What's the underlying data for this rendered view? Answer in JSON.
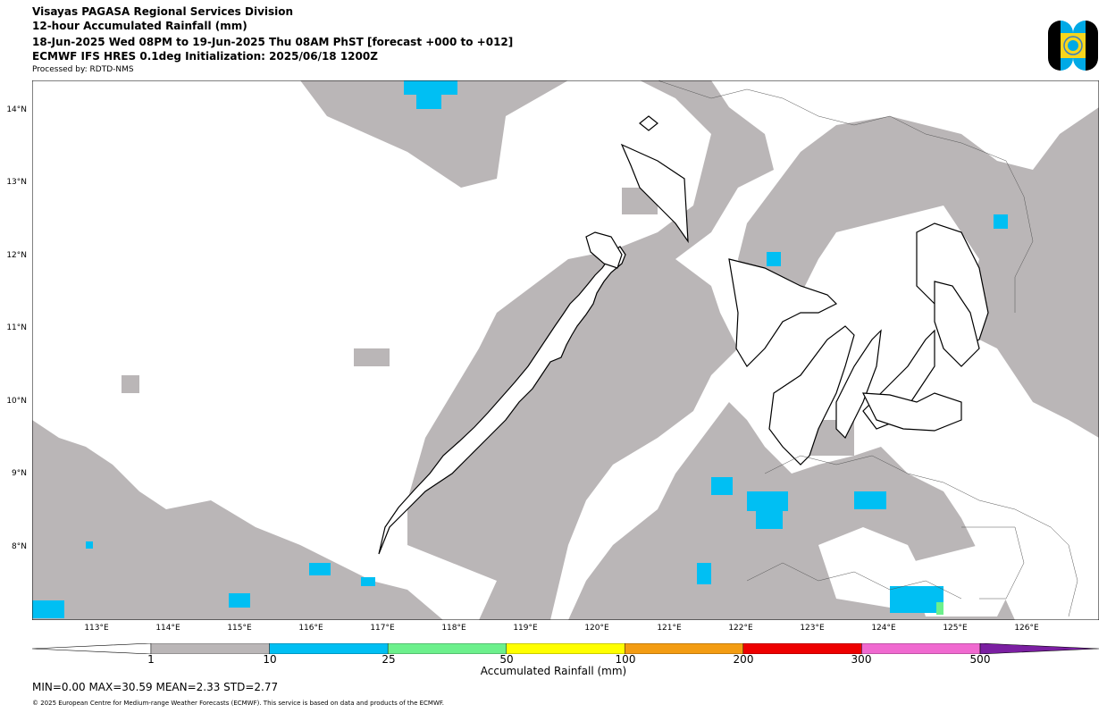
{
  "header": {
    "line1": "Visayas PAGASA Regional Services Division",
    "line2": "12-hour Accumulated Rainfall (mm)",
    "line3": "18-Jun-2025 Wed 08PM to 19-Jun-2025 Thu 08AM PhST [forecast +000 to +012]",
    "line4": "ECMWF IFS HRES 0.1deg Initialization: 2025/06/18 1200Z",
    "line5": "Processed by: RDTD-NMS"
  },
  "logo": {
    "icon": "pagasa-logo-icon"
  },
  "map": {
    "lat_labels": [
      "14°N",
      "13°N",
      "12°N",
      "11°N",
      "10°N",
      "9°N",
      "8°N"
    ],
    "lon_labels": [
      "113°E",
      "114°E",
      "115°E",
      "116°E",
      "117°E",
      "118°E",
      "119°E",
      "120°E",
      "121°E",
      "122°E",
      "123°E",
      "124°E",
      "125°E",
      "126°E"
    ]
  },
  "colorbar": {
    "ticks": [
      "1",
      "10",
      "25",
      "50",
      "100",
      "200",
      "300",
      "500"
    ],
    "colors": [
      "#bab6b7",
      "#00bff3",
      "#6cf08c",
      "#ffff00",
      "#f39c12",
      "#ee0000",
      "#f069d0",
      "#7b1fa2"
    ],
    "label": "Accumulated Rainfall (mm)"
  },
  "stats": "MIN=0.00   MAX=30.59   MEAN=2.33   STD=2.77",
  "copyright": "© 2025 European Centre for Medium-range Weather Forecasts (ECMWF). This service is based on data and products of the ECMWF."
}
